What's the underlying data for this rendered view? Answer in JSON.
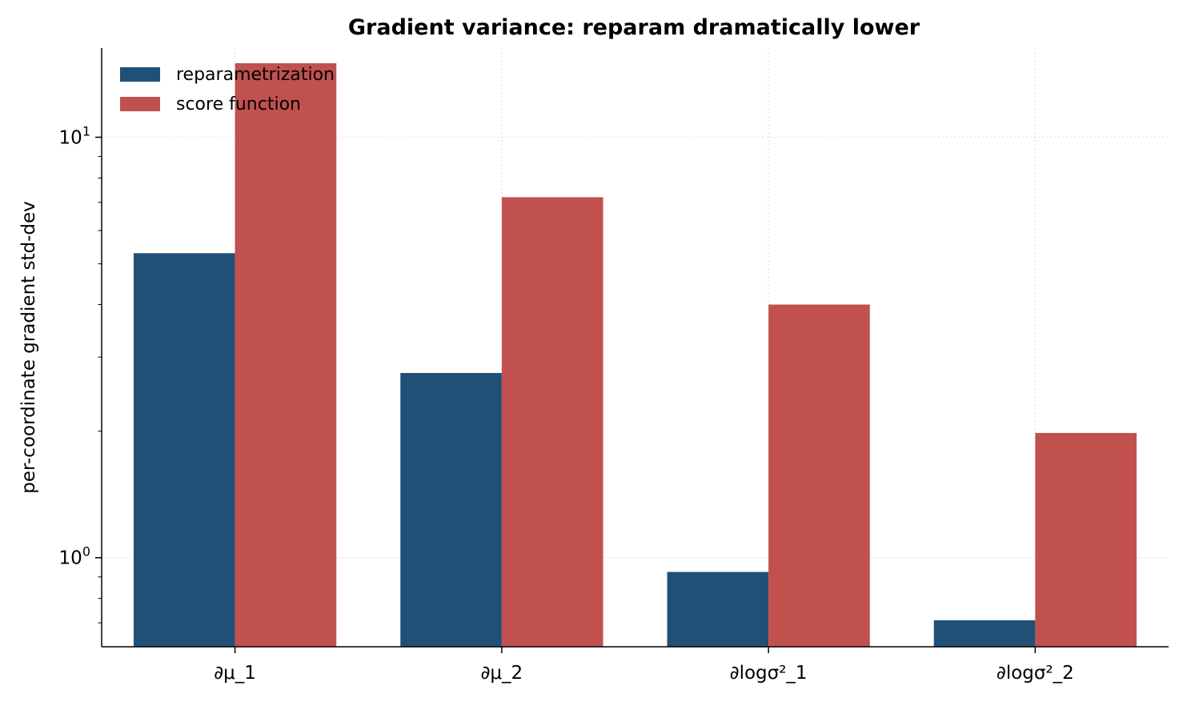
{
  "chart_data": {
    "type": "bar",
    "title": "Gradient variance: reparam dramatically lower",
    "xlabel": "",
    "ylabel": "per-coordinate gradient std-dev",
    "yscale": "log",
    "ylim": [
      0.614,
      16.3
    ],
    "ytick_labels": [
      {
        "value": 1,
        "base": "10",
        "exp": "0"
      },
      {
        "value": 10,
        "base": "10",
        "exp": "1"
      }
    ],
    "categories": [
      "∂μ_1",
      "∂μ_2",
      "∂logσ²_1",
      "∂logσ²_2"
    ],
    "series": [
      {
        "name": "reparametrization",
        "color": "#215077",
        "values": [
          5.3,
          2.75,
          0.925,
          0.71
        ]
      },
      {
        "name": "score function",
        "color": "#c0514f",
        "values": [
          15.0,
          7.2,
          4.0,
          1.98
        ]
      }
    ],
    "grid": true,
    "legend_position": "top-left"
  }
}
